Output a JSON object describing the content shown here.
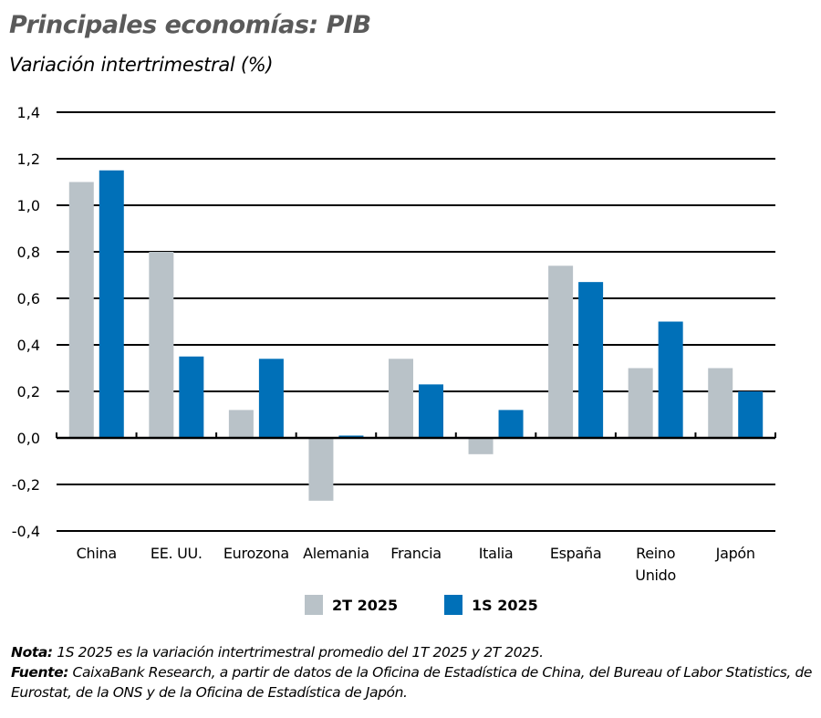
{
  "header": {
    "title": "Principales economías: PIB",
    "subtitle": "Variación intertrimestral (%)"
  },
  "chart_data": {
    "type": "bar",
    "title": "Principales economías: PIB",
    "subtitle": "Variación intertrimestral (%)",
    "xlabel": "",
    "ylabel": "",
    "ylim": [
      -0.4,
      1.4
    ],
    "yticks": [
      "1,4",
      "1,2",
      "1,0",
      "0,8",
      "0,6",
      "0,4",
      "0,2",
      "0,0",
      "-0,2",
      "-0,4"
    ],
    "ytick_values": [
      1.4,
      1.2,
      1.0,
      0.8,
      0.6,
      0.4,
      0.2,
      0.0,
      -0.2,
      -0.4
    ],
    "grid": true,
    "legend_position": "bottom",
    "categories": [
      "China",
      "EE. UU.",
      "Eurozona",
      "Alemania",
      "Francia",
      "Italia",
      "España",
      "Reino Unido",
      "Japón"
    ],
    "category_lines": [
      [
        "China"
      ],
      [
        "EE. UU."
      ],
      [
        "Eurozona"
      ],
      [
        "Alemania"
      ],
      [
        "Francia"
      ],
      [
        "Italia"
      ],
      [
        "España"
      ],
      [
        "Reino",
        "Unido"
      ],
      [
        "Japón"
      ]
    ],
    "series": [
      {
        "name": "2T 2025",
        "color": "#b9c2c8",
        "values": [
          1.1,
          0.8,
          0.12,
          -0.27,
          0.34,
          -0.07,
          0.74,
          0.3,
          0.3
        ]
      },
      {
        "name": "1S 2025",
        "color": "#0070b8",
        "values": [
          1.15,
          0.35,
          0.34,
          0.01,
          0.23,
          0.12,
          0.67,
          0.5,
          0.2
        ]
      }
    ]
  },
  "notes": {
    "nota_label": "Nota:",
    "nota_text": " 1S 2025 es la variación intertrimestral promedio del 1T 2025 y 2T 2025.",
    "fuente_label": "Fuente:",
    "fuente_text": "  CaixaBank Research, a partir de datos de la Oficina de Estadística de China, del Bureau of Labor Statistics, de Eurostat, de la ONS y de la Oficina de Estadística de Japón."
  }
}
